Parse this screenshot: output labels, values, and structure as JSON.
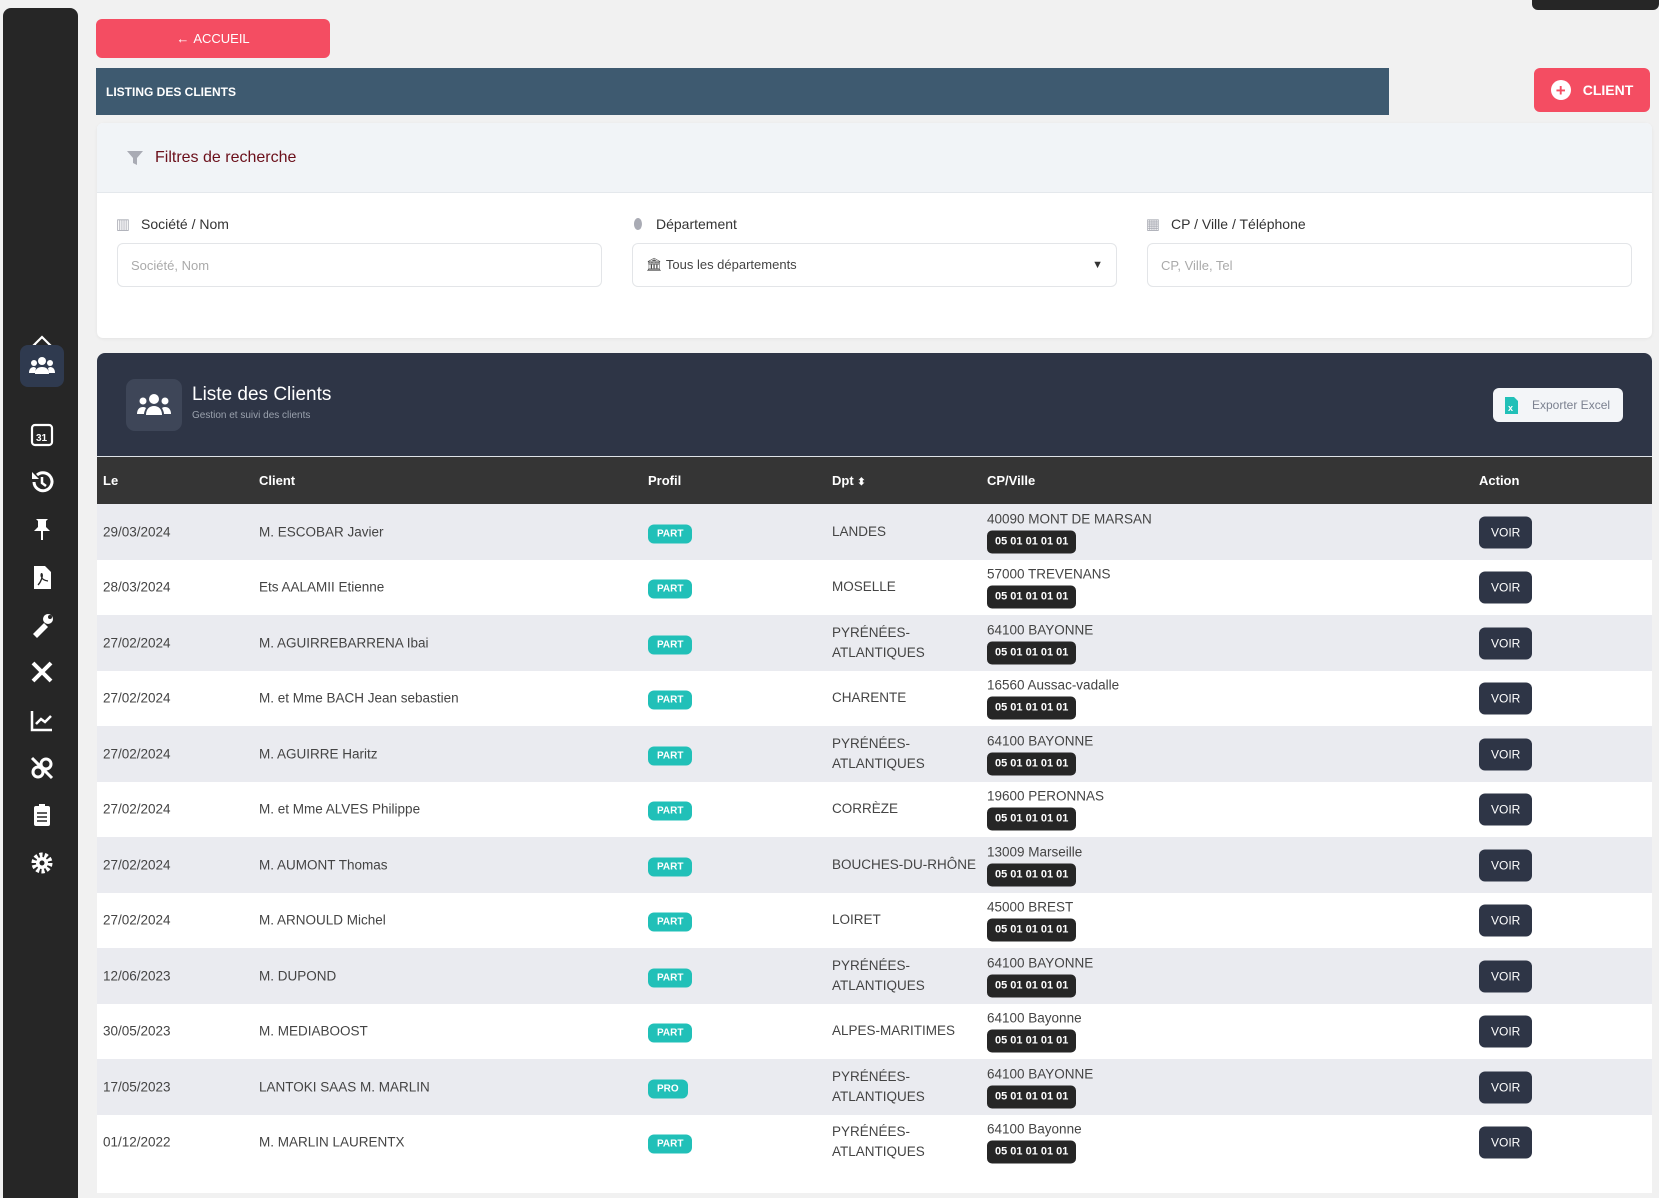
{
  "nav": {
    "back_label": "ACCUEIL",
    "page_title": "LISTING DES CLIENTS",
    "add_client_label": "CLIENT",
    "sidebar_icons": [
      "home-icon",
      "users-icon",
      "calendar-icon",
      "history-icon",
      "pin-icon",
      "pdf-icon",
      "tools-icon",
      "wrench-screwdriver-icon",
      "chart-icon",
      "unlink-icon",
      "clipboard-icon",
      "gear-icon"
    ],
    "active_item": "users-icon"
  },
  "filters": {
    "title": "Filtres de recherche",
    "company": {
      "label": "Société / Nom",
      "placeholder": "Société, Nom",
      "value": ""
    },
    "department": {
      "label": "Département",
      "selected": "🏛 Tous les départements"
    },
    "location": {
      "label": "CP / Ville / Téléphone",
      "placeholder": "CP, Ville, Tel",
      "value": ""
    }
  },
  "clients": {
    "title": "Liste des Clients",
    "subtitle": "Gestion et suivi des clients",
    "export_label": "Exporter Excel",
    "columns": [
      "Le",
      "Client",
      "Profil",
      "Dpt",
      "CP/Ville",
      "Action"
    ],
    "action_label": "VOIR",
    "colors": {
      "accent": "#f44d62",
      "badge": "#21c0b8",
      "header": "#2e3546"
    },
    "rows": [
      {
        "date": "29/03/2024",
        "client": "M. ESCOBAR Javier",
        "profil": "PART",
        "dpt": "LANDES",
        "ville": "40090 MONT DE MARSAN",
        "tel": "05 01 01 01 01"
      },
      {
        "date": "28/03/2024",
        "client": "Ets AALAMII Etienne",
        "profil": "PART",
        "dpt": "MOSELLE",
        "ville": "57000 TREVENANS",
        "tel": "05 01 01 01 01"
      },
      {
        "date": "27/02/2024",
        "client": "M. AGUIRREBARRENA Ibai",
        "profil": "PART",
        "dpt": "PYRÉNÉES-\nATLANTIQUES",
        "ville": "64100 BAYONNE",
        "tel": "05 01 01 01 01"
      },
      {
        "date": "27/02/2024",
        "client": "M. et Mme BACH Jean sebastien",
        "profil": "PART",
        "dpt": "CHARENTE",
        "ville": "16560 Aussac-vadalle",
        "tel": "05 01 01 01 01"
      },
      {
        "date": "27/02/2024",
        "client": "M. AGUIRRE Haritz",
        "profil": "PART",
        "dpt": "PYRÉNÉES-\nATLANTIQUES",
        "ville": "64100 BAYONNE",
        "tel": "05 01 01 01 01"
      },
      {
        "date": "27/02/2024",
        "client": "M. et Mme ALVES Philippe",
        "profil": "PART",
        "dpt": "CORRÈZE",
        "ville": "19600 PERONNAS",
        "tel": "05 01 01 01 01"
      },
      {
        "date": "27/02/2024",
        "client": "M. AUMONT Thomas",
        "profil": "PART",
        "dpt": "BOUCHES-DU-RHÔNE",
        "ville": "13009 Marseille",
        "tel": "05 01 01 01 01"
      },
      {
        "date": "27/02/2024",
        "client": "M. ARNOULD Michel",
        "profil": "PART",
        "dpt": "LOIRET",
        "ville": "45000 BREST",
        "tel": "05 01 01 01 01"
      },
      {
        "date": "12/06/2023",
        "client": "M. DUPOND",
        "profil": "PART",
        "dpt": "PYRÉNÉES-\nATLANTIQUES",
        "ville": "64100 BAYONNE",
        "tel": "05 01 01 01 01"
      },
      {
        "date": "30/05/2023",
        "client": "M. MEDIABOOST",
        "profil": "PART",
        "dpt": "ALPES-MARITIMES",
        "ville": "64100 Bayonne",
        "tel": "05 01 01 01 01"
      },
      {
        "date": "17/05/2023",
        "client": "LANTOKI SAAS M. MARLIN",
        "profil": "PRO",
        "dpt": "PYRÉNÉES-\nATLANTIQUES",
        "ville": "64100 BAYONNE",
        "tel": "05 01 01 01 01"
      },
      {
        "date": "01/12/2022",
        "client": "M. MARLIN LAURENTX",
        "profil": "PART",
        "dpt": "PYRÉNÉES-\nATLANTIQUES",
        "ville": "64100 Bayonne",
        "tel": "05 01 01 01 01"
      }
    ]
  }
}
